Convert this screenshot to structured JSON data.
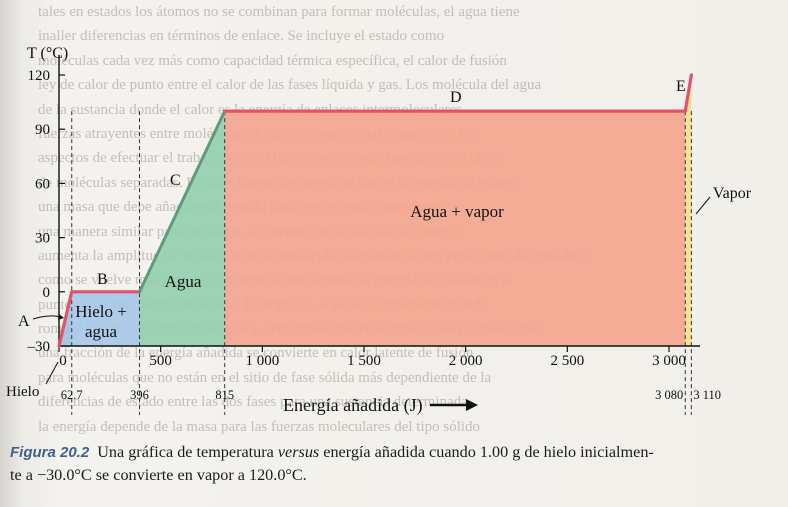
{
  "background_text": [
    "tales en estados los átomos no se combinan para formar moléculas, el agua tiene",
    "inaller diferencias en términos de enlace. Se incluye el estado como",
    "moléculas cada vez más como capacidad térmica específica, el calor de fusión",
    "ley de calor de punto entre el calor de las fases líquida y gas. Los molécula del agua",
    "de la sustancia donde el calor es la energía de enlaces intermoleculares",
    "fuerzas atrayentes entre moléculas de gas con mucha más separación. Por",
    "aspectos de efectuar el trabajo sobre el líquido entre estas fuerzas moleculares",
    "de moléculas separadas. El calor latente de vaporización en la energía de enlace",
    "una masa que debe añadirse al líquido para vencer estas conexiones",
    "una manera similar para un sólido, se supone que la adición de energía",
    "aumenta la amplitud de vibración de las moléculas alrededor de sus posiciones de equilibrio",
    "como se vuelve más grande, conforme se incrementa la energía del sólido en el",
    "punto de derretimiento del sólido, la amplitud es lo suficientemente grande",
    "romper los enlaces entre moléculas y permitirles moverse libres a nuevas posiciones",
    "una fracción de la energía añadida se convierte en calor latente de fusión",
    "para moléculas que no están en el sitio de fase sólida más dependiente de la",
    "diferencias de estado entre las dos fases para una sustancia determinada",
    "la energía depende de la masa para las fuerzas moleculares del tipo sólido"
  ],
  "chart_data": {
    "type": "line",
    "title": "",
    "xlabel": "Energía añadida (J)",
    "ylabel": "T (°C)",
    "xlim": [
      0,
      3150
    ],
    "ylim": [
      -30,
      120
    ],
    "x_ticks": [
      0,
      500,
      1000,
      1500,
      2000,
      2500,
      3000
    ],
    "x_tick_labels": [
      "0",
      "500",
      "1 000",
      "1 500",
      "2 000",
      "2 500",
      "3 000"
    ],
    "y_ticks": [
      -30,
      0,
      30,
      60,
      90,
      120
    ],
    "y_tick_labels": [
      "–30",
      "0",
      "30",
      "60",
      "90",
      "120"
    ],
    "points": [
      {
        "x": 0,
        "y": -30
      },
      {
        "x": 62.7,
        "y": 0
      },
      {
        "x": 396,
        "y": 0
      },
      {
        "x": 815,
        "y": 100
      },
      {
        "x": 3080,
        "y": 100
      },
      {
        "x": 3110,
        "y": 120
      }
    ],
    "marked_x": [
      {
        "x": 62.7,
        "label": "62.7"
      },
      {
        "x": 396,
        "label": "396"
      },
      {
        "x": 815,
        "label": "815"
      },
      {
        "x": 3080,
        "label": "3 080"
      },
      {
        "x": 3110,
        "label": "3 110"
      }
    ],
    "segment_labels": [
      {
        "label": "A",
        "x": -20,
        "y": -15
      },
      {
        "label": "B",
        "x": 230,
        "y": 5
      },
      {
        "label": "C",
        "x": 600,
        "y": 52
      },
      {
        "label": "D",
        "x": 1960,
        "y": 104
      },
      {
        "label": "E",
        "x": 3030,
        "y": 106
      }
    ],
    "regions": [
      {
        "label": "Hielo",
        "x0": 0,
        "x1": 62.7,
        "color": "#9cc3e6"
      },
      {
        "label": "Hielo + agua",
        "x0": 62.7,
        "x1": 396,
        "color": "#a6c8e8"
      },
      {
        "label": "Agua",
        "x0": 396,
        "x1": 815,
        "color": "#93cfae"
      },
      {
        "label": "Agua + vapor",
        "x0": 815,
        "x1": 3080,
        "color": "#f4a48e"
      },
      {
        "label": "Vapor",
        "x0": 3080,
        "x1": 3110,
        "color": "#f6e08a"
      }
    ],
    "region_text": {
      "hielo": "Hielo",
      "hielo_agua_1": "Hielo +",
      "hielo_agua_2": "agua",
      "agua": "Agua",
      "agua_vapor": "Agua + vapor",
      "vapor": "Vapor"
    },
    "line_color": "#e2536b",
    "line_color_rising": "#5c9c7c",
    "grid": false
  },
  "caption": {
    "label": "Figura 20.2",
    "text_part1": "Una gráfica de temperatura ",
    "versus": "versus",
    "text_part2": " energía añadida cuando 1.00 g de hielo inicialmen-",
    "line2": "te a −30.0°C se convierte en vapor a 120.0°C."
  }
}
